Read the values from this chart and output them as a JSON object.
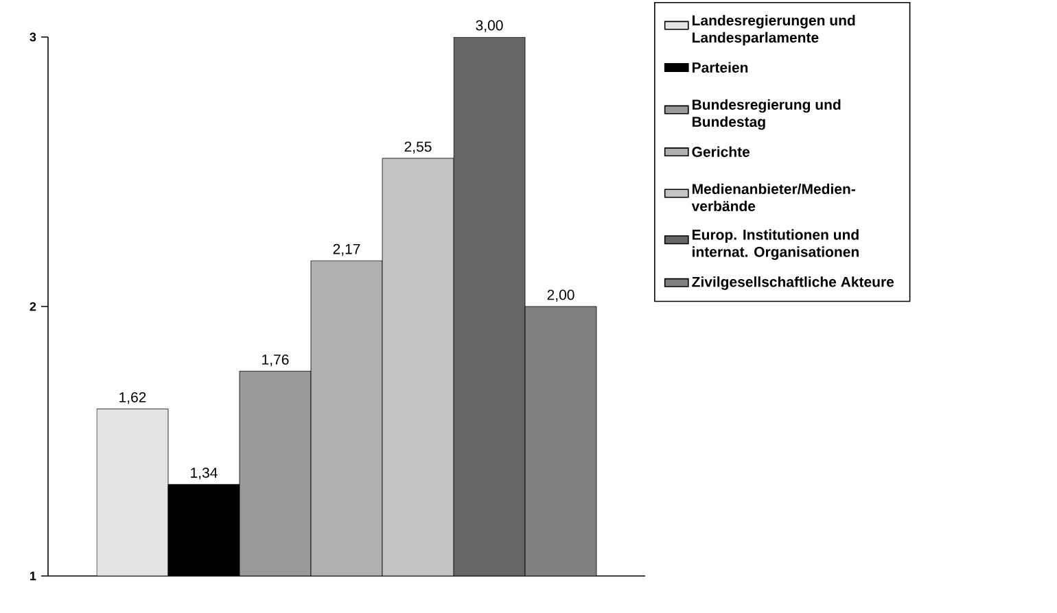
{
  "chart_data": {
    "type": "bar",
    "categories": [
      null
    ],
    "series": [
      {
        "name": "Landesregierungen und Landesparlamente",
        "color": "#e4e4e4",
        "values": [
          1.62
        ],
        "value_labels": [
          "1,62"
        ]
      },
      {
        "name": "Parteien",
        "color": "#000000",
        "values": [
          1.34
        ],
        "value_labels": [
          "1,34"
        ]
      },
      {
        "name": "Bundesregierung und Bundestag",
        "color": "#9a9a9a",
        "values": [
          1.76
        ],
        "value_labels": [
          "1,76"
        ]
      },
      {
        "name": "Gerichte",
        "color": "#b0b0b0",
        "values": [
          2.17
        ],
        "value_labels": [
          "2,17"
        ]
      },
      {
        "name": "Medienanbieter/Medien-verbände",
        "color": "#c4c4c4",
        "values": [
          2.55
        ],
        "value_labels": [
          "2,55"
        ]
      },
      {
        "name": "Europ. Institutionen und internat. Organisationen",
        "color": "#666666",
        "values": [
          3.0
        ],
        "value_labels": [
          "3,00"
        ]
      },
      {
        "name": "Zivilgesellschaftliche Akteure",
        "color": "#808080",
        "values": [
          2.0
        ],
        "value_labels": [
          "2,00"
        ]
      }
    ],
    "ylim": [
      1,
      3
    ],
    "yticks": [
      1,
      2,
      3
    ],
    "legend": "right"
  }
}
